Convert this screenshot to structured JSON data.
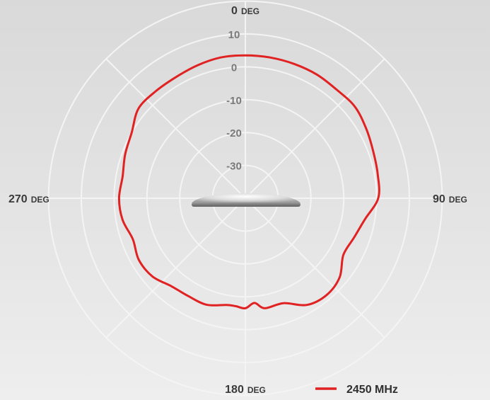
{
  "colors": {
    "grid": "#f4f4f4",
    "series": "#e02222",
    "device_body": "#a8a8a8"
  },
  "chart_data": {
    "type": "polar-line",
    "angle_unit": "deg",
    "angle_direction": "clockwise",
    "angle_zero": "top",
    "angle_labels": [
      {
        "angle": 0,
        "number": "0",
        "unit": "DEG"
      },
      {
        "angle": 90,
        "number": "90",
        "unit": "DEG"
      },
      {
        "angle": 180,
        "number": "180",
        "unit": "DEG"
      },
      {
        "angle": 270,
        "number": "270",
        "unit": "DEG"
      }
    ],
    "radial_ticks": [
      "10",
      "0",
      "-10",
      "-20",
      "-30"
    ],
    "r_range": [
      -40,
      20
    ],
    "grid_rings": [
      -30,
      -20,
      -10,
      0,
      10,
      20
    ],
    "spoke_angles": [
      0,
      45,
      90,
      135,
      180,
      225,
      270,
      315
    ],
    "legend_position": "bottom-right",
    "series": [
      {
        "name": "2450 MHz",
        "color": "#e02222",
        "angles": [
          0,
          10,
          20,
          30,
          40,
          50,
          60,
          70,
          80,
          90,
          100,
          110,
          120,
          130,
          140,
          150,
          160,
          170,
          175,
          180,
          185,
          190,
          200,
          210,
          220,
          230,
          240,
          250,
          260,
          270,
          280,
          290,
          300,
          310,
          320,
          330,
          340,
          350
        ],
        "values": [
          3.5,
          3.5,
          3.5,
          3.5,
          3.2,
          3.5,
          2.5,
          1.5,
          1,
          0.5,
          -3,
          -4.8,
          -5.5,
          -2.5,
          -1.5,
          -2.5,
          -6,
          -6,
          -8,
          -6.5,
          -7,
          -7,
          -5.5,
          -5.5,
          -5,
          -3,
          -2.5,
          -3.5,
          -2,
          -1.5,
          -2,
          -1,
          0,
          2.5,
          2.5,
          2.5,
          3.0,
          3.5
        ]
      }
    ]
  }
}
